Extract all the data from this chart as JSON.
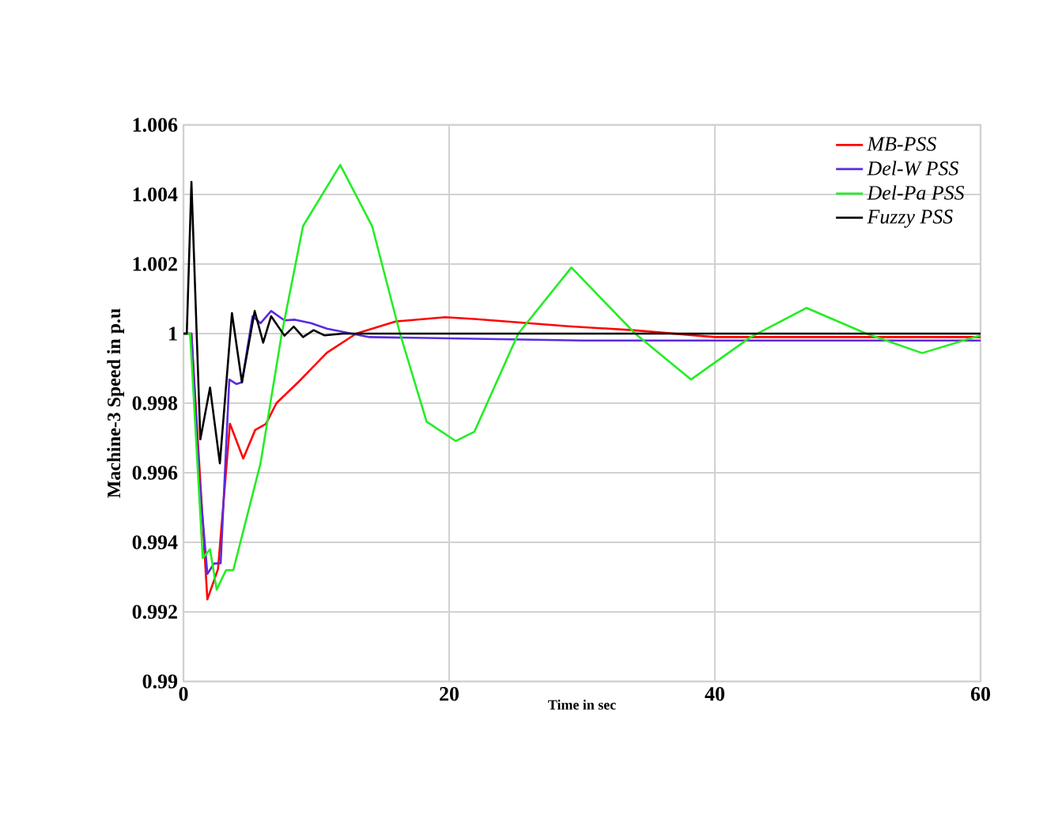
{
  "chart_data": {
    "type": "line",
    "xlabel": "Time in sec",
    "ylabel": "Machine-3 Speed in p.u",
    "xlim": [
      0,
      60
    ],
    "ylim": [
      0.99,
      1.006
    ],
    "xticks": [
      0,
      20,
      40,
      60
    ],
    "yticks": [
      0.99,
      0.992,
      0.994,
      0.996,
      0.998,
      1,
      1.002,
      1.004,
      1.006
    ],
    "grid": true,
    "legend": "top right",
    "marker": "none",
    "line_style": "solid",
    "series": [
      {
        "name": "MB-PSS",
        "color": "#ff0000",
        "x": [
          0,
          0.6,
          1.2,
          1.8,
          2.6,
          3.5,
          4.5,
          5.4,
          6.2,
          7.0,
          8.6,
          10.8,
          13,
          16,
          19.7,
          21.9,
          29,
          33.8,
          40,
          50,
          60
        ],
        "values": [
          1.0,
          1.0,
          null,
          0.99236,
          0.99323,
          0.99741,
          0.99641,
          0.99723,
          0.9974,
          0.998,
          0.99859,
          0.99945,
          1.0,
          1.00035,
          1.00047,
          1.00042,
          1.00021,
          1.0001,
          0.9999,
          0.9999,
          0.9999
        ]
      },
      {
        "name": "Del-W PSS",
        "color": "#5b2be0",
        "x": [
          0,
          0.6,
          1.2,
          1.8,
          2.3,
          2.8,
          3.45,
          4.0,
          4.4,
          5.2,
          5.8,
          6.6,
          7.6,
          8.4,
          9.6,
          10.8,
          14,
          30,
          60
        ],
        "values": [
          1.0,
          1.0,
          0.9958,
          0.99309,
          0.99339,
          0.9934,
          0.99868,
          0.99855,
          0.9986,
          1.0005,
          1.0003,
          1.00065,
          1.00038,
          1.0004,
          1.0003,
          1.00014,
          0.9999,
          0.9998,
          0.9998
        ]
      },
      {
        "name": "Del-Pa PSS",
        "color": "#22ee22",
        "x": [
          0,
          0.5,
          1.45,
          2.0,
          2.5,
          3.2,
          3.75,
          5.8,
          7.4,
          9.0,
          11.8,
          14.2,
          16.3,
          18.3,
          20.5,
          21.9,
          25.2,
          29.2,
          34,
          38.2,
          42.7,
          46.9,
          51.4,
          55.6,
          60
        ],
        "values": [
          1.0,
          1.0,
          0.99355,
          0.9938,
          0.99264,
          0.9932,
          0.9932,
          0.99627,
          1.0,
          1.00309,
          1.00485,
          1.00309,
          1.0,
          0.99747,
          0.99691,
          0.99718,
          1.0,
          1.0019,
          1.0,
          0.99868,
          0.9999,
          1.00074,
          1.0,
          0.99944,
          0.99995
        ]
      },
      {
        "name": "Fuzzy PSS",
        "color": "#000000",
        "x": [
          0,
          0.25,
          0.6,
          1.27,
          2.0,
          2.74,
          3.65,
          4.4,
          5.36,
          6.0,
          6.6,
          7.6,
          8.3,
          9.0,
          9.8,
          10.6,
          12,
          30,
          60
        ],
        "values": [
          1.0,
          1.0,
          1.00436,
          0.99696,
          0.99845,
          0.99627,
          1.00059,
          0.9986,
          1.00065,
          0.99974,
          1.0005,
          0.99994,
          1.0002,
          0.9999,
          1.0001,
          0.99995,
          1.0,
          1.0,
          1.0
        ]
      }
    ]
  }
}
